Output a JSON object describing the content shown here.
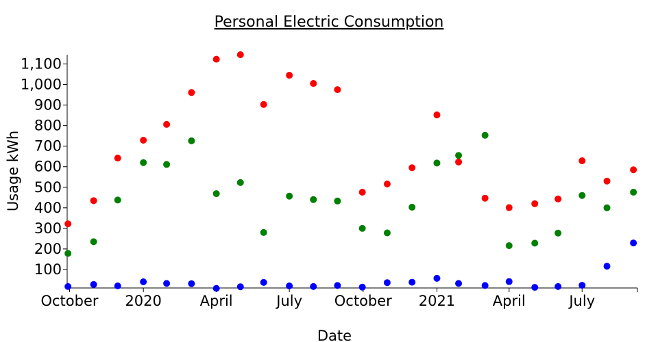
{
  "chart_data": {
    "type": "scatter",
    "title": "Personal Electric Consumption",
    "xlabel": "Date",
    "ylabel": "Usage kWh",
    "x_range": [
      "2019-09-28",
      "2021-09-08"
    ],
    "ylim": [
      10,
      1145
    ],
    "x_ticks": [
      {
        "date": "2019-10-01",
        "label": "October"
      },
      {
        "date": "2020-01-01",
        "label": "2020"
      },
      {
        "date": "2020-04-01",
        "label": "April"
      },
      {
        "date": "2020-07-01",
        "label": "July"
      },
      {
        "date": "2020-10-01",
        "label": "October"
      },
      {
        "date": "2021-01-01",
        "label": "2021"
      },
      {
        "date": "2021-04-01",
        "label": "April"
      },
      {
        "date": "2021-07-01",
        "label": "July"
      }
    ],
    "y_ticks": [
      {
        "value": 100,
        "label": "100"
      },
      {
        "value": 200,
        "label": "200"
      },
      {
        "value": 300,
        "label": "300"
      },
      {
        "value": 400,
        "label": "400"
      },
      {
        "value": 500,
        "label": "500"
      },
      {
        "value": 600,
        "label": "600"
      },
      {
        "value": 700,
        "label": "700"
      },
      {
        "value": 800,
        "label": "800"
      },
      {
        "value": 900,
        "label": "900"
      },
      {
        "value": 1000,
        "label": "1,000"
      },
      {
        "value": 1100,
        "label": "1,100"
      }
    ],
    "x": [
      "2019-09-29",
      "2019-10-31",
      "2019-11-30",
      "2020-01-01",
      "2020-01-30",
      "2020-03-01",
      "2020-04-01",
      "2020-05-01",
      "2020-05-30",
      "2020-07-01",
      "2020-07-31",
      "2020-08-30",
      "2020-09-30",
      "2020-10-31",
      "2020-12-01",
      "2021-01-01",
      "2021-01-28",
      "2021-03-02",
      "2021-04-01",
      "2021-05-03",
      "2021-06-01",
      "2021-07-01",
      "2021-08-01",
      "2021-09-03"
    ],
    "series": [
      {
        "color": "#ff0000",
        "values": [
          322,
          435,
          642,
          729,
          806,
          961,
          1123,
          1145,
          903,
          1045,
          1005,
          975,
          476,
          516,
          595,
          852,
          623,
          447,
          401,
          420,
          443,
          629,
          530,
          585
        ]
      },
      {
        "color": "#008000",
        "values": [
          178,
          235,
          438,
          620,
          611,
          726,
          469,
          523,
          280,
          457,
          440,
          433,
          300,
          278,
          403,
          618,
          655,
          753,
          216,
          228,
          277,
          460,
          400,
          476
        ]
      },
      {
        "color": "#0000ff",
        "values": [
          17,
          27,
          20,
          40,
          32,
          31,
          8,
          16,
          37,
          20,
          17,
          22,
          14,
          36,
          38,
          57,
          32,
          22,
          41,
          13,
          17,
          23,
          116,
          229
        ]
      }
    ]
  }
}
